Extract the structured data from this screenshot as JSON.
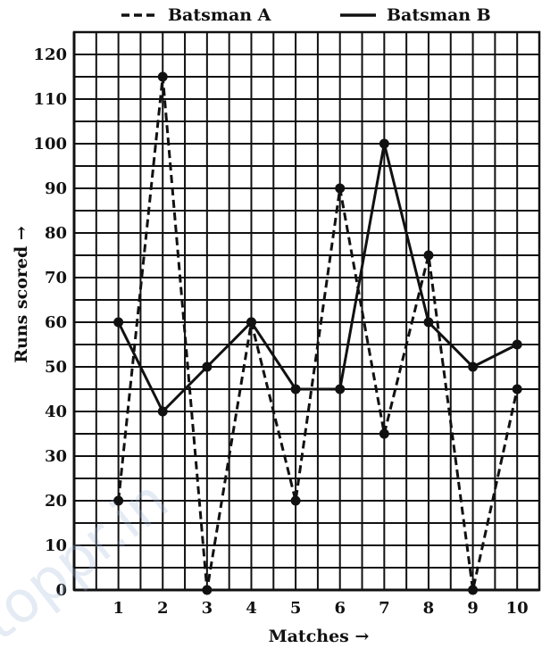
{
  "chart_data": {
    "type": "line",
    "title": "",
    "xlabel": "Matches →",
    "ylabel": "Runs scored →",
    "x": [
      1,
      2,
      3,
      4,
      5,
      6,
      7,
      8,
      9,
      10
    ],
    "x_tick_labels": [
      "1",
      "2",
      "3",
      "4",
      "5",
      "6",
      "7",
      "8",
      "9",
      "10"
    ],
    "y_ticks": [
      0,
      10,
      20,
      30,
      40,
      50,
      60,
      70,
      80,
      90,
      100,
      110,
      120
    ],
    "y_tick_labels": [
      "0",
      "10",
      "20",
      "30",
      "40",
      "50",
      "60",
      "70",
      "80",
      "90",
      "100",
      "110",
      "120"
    ],
    "xlim": [
      0,
      10.5
    ],
    "ylim": [
      0,
      125
    ],
    "grid": true,
    "legend_position": "top-center",
    "series": [
      {
        "name": "Batsman A",
        "style": "dashed",
        "color": "#111111",
        "values": [
          20,
          115,
          0,
          60,
          20,
          90,
          35,
          75,
          0,
          45
        ]
      },
      {
        "name": "Batsman B",
        "style": "solid",
        "color": "#111111",
        "values": [
          60,
          40,
          50,
          60,
          45,
          45,
          100,
          60,
          50,
          55
        ]
      }
    ]
  },
  "watermark": "toppr.in"
}
